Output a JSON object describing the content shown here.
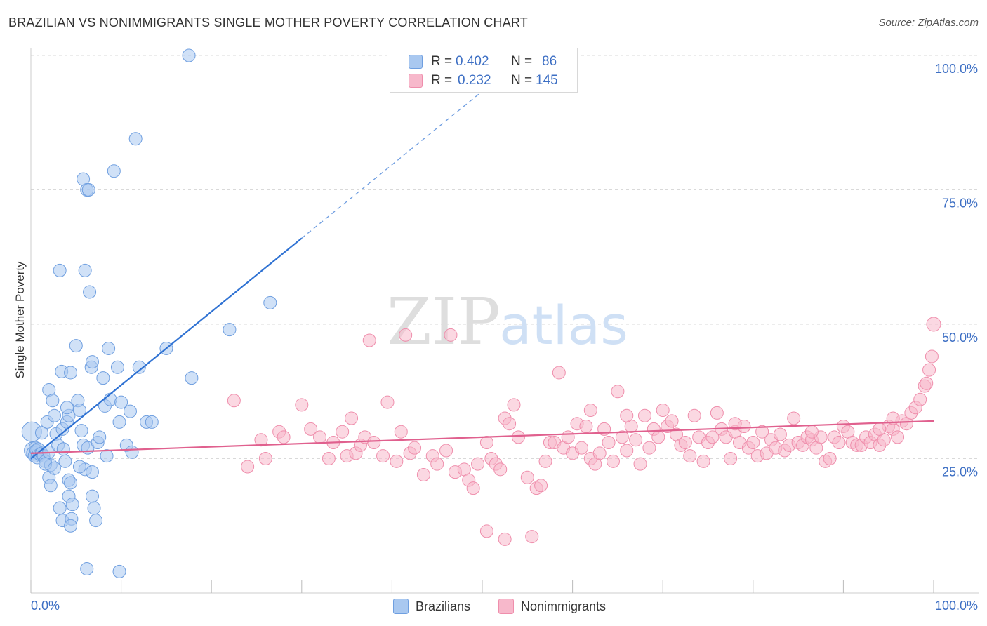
{
  "title": "BRAZILIAN VS NONIMMIGRANTS SINGLE MOTHER POVERTY CORRELATION CHART",
  "source": "Source: ZipAtlas.com",
  "watermark": {
    "zip": "ZIP",
    "atlas": "atlas"
  },
  "colors": {
    "blue_fill": "#a9c8f0",
    "blue_stroke": "#6f9fe0",
    "blue_line": "#2f72d3",
    "pink_fill": "#f7b8cb",
    "pink_stroke": "#ef8eac",
    "pink_line": "#e0608e",
    "tick_label": "#3d6fc4",
    "grid": "#d9d9d9"
  },
  "legend": {
    "rows": [
      {
        "r_label": "R =",
        "r_value": "0.402",
        "n_label": "N =",
        "n_value": "86"
      },
      {
        "r_label": "R =",
        "r_value": "0.232",
        "n_label": "N =",
        "n_value": "145"
      }
    ]
  },
  "bottom_legend": {
    "brazilians": "Brazilians",
    "nonimmigrants": "Nonimmigrants"
  },
  "chart_data": {
    "type": "scatter",
    "title": "BRAZILIAN VS NONIMMIGRANTS SINGLE MOTHER POVERTY CORRELATION CHART",
    "xlabel": "",
    "ylabel": "Single Mother Poverty",
    "xlim": [
      0,
      100
    ],
    "ylim": [
      0,
      100
    ],
    "x_tick_labels": [
      {
        "value": 0,
        "label": "0.0%"
      },
      {
        "value": 100,
        "label": "100.0%"
      }
    ],
    "y_tick_labels": [
      {
        "value": 25,
        "label": "25.0%"
      },
      {
        "value": 50,
        "label": "50.0%"
      },
      {
        "value": 75,
        "label": "75.0%"
      },
      {
        "value": 100,
        "label": "100.0%"
      }
    ],
    "grid": true,
    "series": [
      {
        "name": "Brazilians",
        "color": "blue",
        "r": 0.402,
        "n": 86,
        "trend": {
          "x0": 0,
          "y0": 25.0,
          "x1": 30,
          "y1": 66.0,
          "dash_to_x": 53
        },
        "points": [
          [
            0.1,
            30.0,
            14
          ],
          [
            0.2,
            26.5,
            12
          ],
          [
            0.3,
            26.0,
            10
          ],
          [
            0.4,
            25.5,
            9
          ],
          [
            0.5,
            27.0,
            9
          ],
          [
            0.6,
            26.5,
            9
          ],
          [
            0.7,
            25.2,
            9
          ],
          [
            0.8,
            26.8,
            9
          ],
          [
            1.0,
            25.8,
            9
          ],
          [
            1.2,
            26.0,
            9
          ],
          [
            1.4,
            25.5,
            9
          ],
          [
            1.6,
            24.5,
            9
          ],
          [
            1.2,
            29.8,
            9
          ],
          [
            1.8,
            31.8,
            9
          ],
          [
            2.0,
            26.2,
            9
          ],
          [
            2.2,
            23.8,
            9
          ],
          [
            2.0,
            37.8,
            9
          ],
          [
            2.4,
            35.8,
            9
          ],
          [
            2.6,
            33.0,
            9
          ],
          [
            2.8,
            29.6,
            9
          ],
          [
            3.0,
            27.5,
            9
          ],
          [
            2.0,
            21.5,
            9
          ],
          [
            2.2,
            20.0,
            9
          ],
          [
            3.4,
            41.2,
            9
          ],
          [
            3.5,
            30.5,
            9
          ],
          [
            3.6,
            26.8,
            9
          ],
          [
            3.8,
            24.5,
            9
          ],
          [
            4.0,
            31.8,
            9
          ],
          [
            4.2,
            33.0,
            9
          ],
          [
            4.0,
            34.5,
            9
          ],
          [
            4.4,
            41.0,
            9
          ],
          [
            4.2,
            21.0,
            9
          ],
          [
            4.4,
            20.5,
            9
          ],
          [
            4.2,
            18.0,
            9
          ],
          [
            4.6,
            16.5,
            9
          ],
          [
            3.2,
            15.8,
            9
          ],
          [
            3.5,
            13.5,
            9
          ],
          [
            4.5,
            13.8,
            9
          ],
          [
            4.4,
            12.5,
            9
          ],
          [
            5.0,
            46.0,
            9
          ],
          [
            5.2,
            35.8,
            9
          ],
          [
            5.4,
            34.0,
            9
          ],
          [
            5.6,
            30.2,
            9
          ],
          [
            5.8,
            27.5,
            9
          ],
          [
            6.0,
            23.0,
            9
          ],
          [
            6.3,
            27.0,
            9
          ],
          [
            6.5,
            56.0,
            9
          ],
          [
            6.7,
            42.0,
            9
          ],
          [
            6.8,
            43.0,
            9
          ],
          [
            6.8,
            18.0,
            9
          ],
          [
            7.0,
            15.8,
            9
          ],
          [
            7.2,
            13.5,
            9
          ],
          [
            5.8,
            77.0,
            9
          ],
          [
            6.2,
            75.0,
            9
          ],
          [
            6.4,
            75.0,
            9
          ],
          [
            7.4,
            28.0,
            9
          ],
          [
            7.6,
            29.0,
            9
          ],
          [
            8.0,
            40.0,
            9
          ],
          [
            8.2,
            34.8,
            9
          ],
          [
            8.4,
            25.5,
            9
          ],
          [
            8.6,
            45.5,
            9
          ],
          [
            8.8,
            36.0,
            9
          ],
          [
            9.2,
            78.5,
            9
          ],
          [
            9.6,
            42.0,
            9
          ],
          [
            9.8,
            31.8,
            9
          ],
          [
            10.0,
            35.5,
            9
          ],
          [
            10.6,
            27.5,
            9
          ],
          [
            11.0,
            33.8,
            9
          ],
          [
            11.2,
            26.2,
            9
          ],
          [
            11.6,
            84.5,
            9
          ],
          [
            12.0,
            42.0,
            9
          ],
          [
            12.8,
            31.8,
            9
          ],
          [
            13.4,
            31.8,
            9
          ],
          [
            15.0,
            45.5,
            9
          ],
          [
            17.5,
            100.0,
            9
          ],
          [
            17.8,
            40.0,
            9
          ],
          [
            22.0,
            49.0,
            9
          ],
          [
            26.5,
            54.0,
            9
          ],
          [
            6.0,
            60.0,
            9
          ],
          [
            6.2,
            4.5,
            9
          ],
          [
            9.8,
            4.0,
            9
          ],
          [
            3.2,
            60.0,
            9
          ],
          [
            5.4,
            23.5,
            9
          ],
          [
            6.8,
            22.5,
            9
          ],
          [
            1.6,
            24.0,
            9
          ],
          [
            2.6,
            23.2,
            9
          ]
        ]
      },
      {
        "name": "Nonimmigrants",
        "color": "pink",
        "r": 0.232,
        "n": 145,
        "trend": {
          "x0": 0,
          "y0": 26.0,
          "x1": 100,
          "y1": 32.0
        },
        "points": [
          [
            22.5,
            35.8,
            9
          ],
          [
            24.0,
            23.5,
            9
          ],
          [
            25.5,
            28.5,
            9
          ],
          [
            26.0,
            25.0,
            9
          ],
          [
            27.5,
            30.0,
            9
          ],
          [
            28.0,
            29.0,
            9
          ],
          [
            30.0,
            35.0,
            9
          ],
          [
            31.0,
            30.5,
            9
          ],
          [
            32.0,
            29.0,
            9
          ],
          [
            33.0,
            25.0,
            9
          ],
          [
            33.5,
            28.0,
            9
          ],
          [
            34.5,
            30.0,
            9
          ],
          [
            35.0,
            25.5,
            9
          ],
          [
            35.5,
            32.5,
            9
          ],
          [
            36.0,
            26.0,
            9
          ],
          [
            36.5,
            27.5,
            9
          ],
          [
            37.0,
            29.0,
            9
          ],
          [
            37.5,
            47.0,
            9
          ],
          [
            38.0,
            28.0,
            9
          ],
          [
            39.0,
            25.5,
            9
          ],
          [
            40.5,
            24.5,
            9
          ],
          [
            41.0,
            30.0,
            9
          ],
          [
            42.0,
            26.0,
            9
          ],
          [
            42.5,
            27.0,
            9
          ],
          [
            43.5,
            22.0,
            9
          ],
          [
            44.5,
            25.5,
            9
          ],
          [
            45.0,
            24.0,
            9
          ],
          [
            46.0,
            26.5,
            9
          ],
          [
            46.5,
            48.0,
            9
          ],
          [
            47.0,
            22.5,
            9
          ],
          [
            48.0,
            23.0,
            9
          ],
          [
            48.5,
            21.0,
            9
          ],
          [
            49.0,
            19.5,
            9
          ],
          [
            49.5,
            24.0,
            9
          ],
          [
            50.5,
            28.0,
            9
          ],
          [
            51.0,
            25.0,
            9
          ],
          [
            51.5,
            24.0,
            9
          ],
          [
            52.0,
            23.0,
            9
          ],
          [
            52.5,
            32.5,
            9
          ],
          [
            53.0,
            31.5,
            9
          ],
          [
            53.5,
            35.0,
            9
          ],
          [
            54.0,
            29.0,
            9
          ],
          [
            55.0,
            21.5,
            9
          ],
          [
            55.5,
            10.5,
            9
          ],
          [
            56.0,
            19.5,
            9
          ],
          [
            56.5,
            20.0,
            9
          ],
          [
            57.0,
            24.5,
            9
          ],
          [
            57.5,
            28.0,
            9
          ],
          [
            58.0,
            28.0,
            9
          ],
          [
            58.5,
            41.0,
            9
          ],
          [
            59.0,
            27.0,
            9
          ],
          [
            59.5,
            29.0,
            9
          ],
          [
            60.0,
            26.0,
            9
          ],
          [
            60.5,
            31.5,
            9
          ],
          [
            61.0,
            27.0,
            9
          ],
          [
            61.5,
            31.0,
            9
          ],
          [
            62.0,
            25.0,
            9
          ],
          [
            62.5,
            24.0,
            9
          ],
          [
            63.0,
            26.0,
            9
          ],
          [
            63.5,
            30.5,
            9
          ],
          [
            64.0,
            28.0,
            9
          ],
          [
            64.5,
            24.5,
            9
          ],
          [
            65.0,
            37.5,
            9
          ],
          [
            65.5,
            29.0,
            9
          ],
          [
            66.0,
            26.5,
            9
          ],
          [
            66.5,
            31.0,
            9
          ],
          [
            67.0,
            28.5,
            9
          ],
          [
            67.5,
            24.0,
            9
          ],
          [
            68.0,
            33.0,
            9
          ],
          [
            68.5,
            27.0,
            9
          ],
          [
            69.0,
            30.5,
            9
          ],
          [
            69.5,
            29.0,
            9
          ],
          [
            70.0,
            34.0,
            9
          ],
          [
            70.5,
            31.0,
            9
          ],
          [
            71.0,
            32.0,
            9
          ],
          [
            71.5,
            29.5,
            9
          ],
          [
            72.0,
            27.5,
            9
          ],
          [
            72.5,
            28.0,
            9
          ],
          [
            73.0,
            25.5,
            9
          ],
          [
            73.5,
            33.0,
            9
          ],
          [
            74.0,
            29.0,
            9
          ],
          [
            74.5,
            24.5,
            9
          ],
          [
            75.0,
            28.0,
            9
          ],
          [
            75.5,
            29.0,
            9
          ],
          [
            76.0,
            33.5,
            9
          ],
          [
            76.5,
            30.5,
            9
          ],
          [
            77.0,
            29.0,
            9
          ],
          [
            77.5,
            25.0,
            9
          ],
          [
            78.0,
            30.0,
            9
          ],
          [
            78.5,
            28.0,
            9
          ],
          [
            79.0,
            31.0,
            9
          ],
          [
            79.5,
            27.0,
            9
          ],
          [
            80.0,
            28.0,
            9
          ],
          [
            80.5,
            25.5,
            9
          ],
          [
            81.0,
            30.0,
            9
          ],
          [
            81.5,
            26.0,
            9
          ],
          [
            82.0,
            28.5,
            9
          ],
          [
            82.5,
            27.0,
            9
          ],
          [
            83.0,
            29.5,
            9
          ],
          [
            83.5,
            26.5,
            9
          ],
          [
            84.0,
            27.5,
            9
          ],
          [
            84.5,
            32.5,
            9
          ],
          [
            85.0,
            28.0,
            9
          ],
          [
            85.5,
            27.5,
            9
          ],
          [
            86.0,
            29.0,
            9
          ],
          [
            86.5,
            28.5,
            9
          ],
          [
            87.0,
            27.0,
            9
          ],
          [
            87.5,
            29.0,
            9
          ],
          [
            88.0,
            24.5,
            9
          ],
          [
            88.5,
            25.0,
            9
          ],
          [
            89.0,
            29.0,
            9
          ],
          [
            89.5,
            28.0,
            9
          ],
          [
            90.0,
            31.0,
            9
          ],
          [
            90.5,
            30.0,
            9
          ],
          [
            91.0,
            28.0,
            9
          ],
          [
            91.5,
            27.5,
            9
          ],
          [
            92.0,
            27.5,
            9
          ],
          [
            92.5,
            29.0,
            9
          ],
          [
            93.0,
            28.0,
            9
          ],
          [
            93.5,
            29.5,
            9
          ],
          [
            94.0,
            27.5,
            9
          ],
          [
            94.5,
            28.5,
            9
          ],
          [
            95.0,
            31.0,
            9
          ],
          [
            95.5,
            30.5,
            9
          ],
          [
            96.0,
            29.0,
            9
          ],
          [
            96.5,
            32.0,
            9
          ],
          [
            97.0,
            31.5,
            9
          ],
          [
            97.5,
            33.5,
            9
          ],
          [
            98.0,
            34.5,
            9
          ],
          [
            98.5,
            36.0,
            9
          ],
          [
            99.0,
            38.5,
            9
          ],
          [
            99.2,
            39.0,
            9
          ],
          [
            99.5,
            41.5,
            9
          ],
          [
            99.8,
            44.0,
            9
          ],
          [
            100.0,
            50.0,
            10
          ],
          [
            41.5,
            48.0,
            9
          ],
          [
            50.5,
            11.5,
            9
          ],
          [
            52.5,
            10.0,
            9
          ],
          [
            39.5,
            35.5,
            9
          ],
          [
            62.0,
            34.0,
            9
          ],
          [
            78.0,
            31.5,
            9
          ],
          [
            66.0,
            33.0,
            9
          ],
          [
            86.5,
            30.0,
            9
          ],
          [
            94.0,
            30.5,
            9
          ],
          [
            95.5,
            32.5,
            9
          ]
        ]
      }
    ]
  }
}
